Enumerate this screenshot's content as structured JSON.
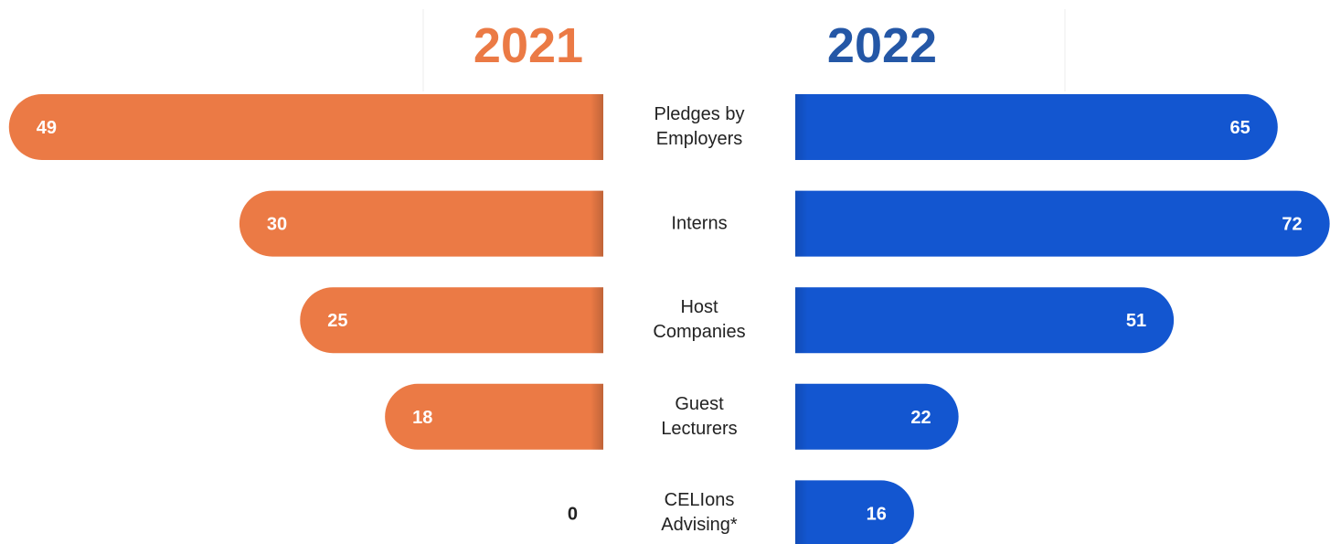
{
  "chart_data": {
    "type": "butterfly",
    "categories": [
      "Pledges by Employers",
      "Interns",
      "Host Companies",
      "Guest Lecturers",
      "CELIons Advising*"
    ],
    "series": [
      {
        "name": "2021",
        "color": "#eb7a45",
        "values": [
          49,
          30,
          25,
          18,
          0
        ]
      },
      {
        "name": "2022",
        "color": "#1356d0",
        "values": [
          65,
          72,
          51,
          22,
          16
        ]
      }
    ]
  }
}
